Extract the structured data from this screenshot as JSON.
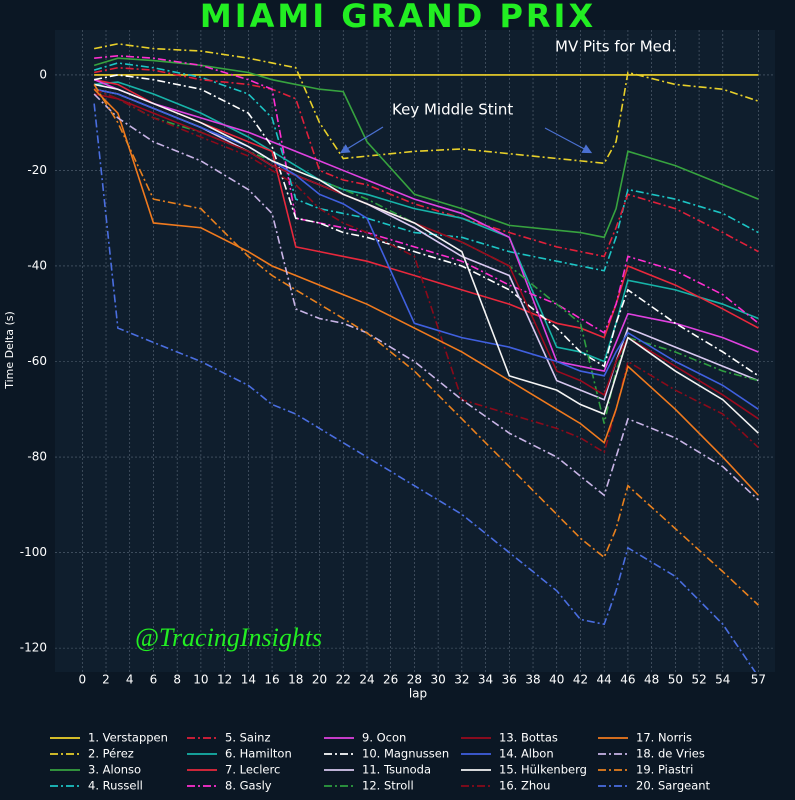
{
  "chart_data": {
    "type": "line",
    "title": "MIAMI GRAND PRIX",
    "xlabel": "lap",
    "ylabel": "Time Delta (s)",
    "annotations": [
      "MV Pits for Med.",
      "Key Middle Stint"
    ],
    "watermark": "@TracingInsights",
    "grid": true,
    "legend": "bottom",
    "xlim": [
      -2.3,
      58.4
    ],
    "ylim": [
      -125,
      9.4
    ],
    "xticks": [
      0,
      2,
      4,
      6,
      8,
      10,
      12,
      14,
      16,
      18,
      20,
      22,
      24,
      26,
      28,
      30,
      32,
      34,
      36,
      38,
      40,
      42,
      44,
      46,
      48,
      50,
      52,
      54,
      57
    ],
    "yticks": [
      0,
      -20,
      -40,
      -60,
      -80,
      -100,
      -120
    ],
    "x": [
      1,
      3,
      6,
      10,
      14,
      16,
      18,
      20,
      22,
      24,
      28,
      32,
      36,
      40,
      42,
      44,
      45,
      46,
      50,
      54,
      57
    ],
    "series": [
      {
        "name": "1. Verstappen",
        "color": "#f2d42a",
        "style": "solid",
        "values": [
          0,
          0,
          0,
          0,
          0,
          0,
          0,
          0,
          0,
          0,
          0,
          0,
          0,
          0,
          0,
          0,
          0,
          0,
          0,
          0,
          0
        ]
      },
      {
        "name": "2. Pérez",
        "color": "#e8d02a",
        "style": "dashdot",
        "values": [
          5.5,
          6.5,
          5.5,
          5,
          3.5,
          2.5,
          1.5,
          -10,
          -17.5,
          -17,
          -16,
          -15.5,
          -16.5,
          -17.5,
          -18,
          -18.5,
          -14,
          0.5,
          -2,
          -3,
          -5.5
        ]
      },
      {
        "name": "3. Alonso",
        "color": "#37a33f",
        "style": "solid",
        "values": [
          2,
          3.5,
          3,
          2,
          0.5,
          -1,
          -2,
          -3,
          -3.5,
          -14,
          -25,
          -28,
          -31.5,
          -32.5,
          -33,
          -34,
          -28,
          -16,
          -19,
          -23,
          -26
        ]
      },
      {
        "name": "4. Russell",
        "color": "#1cc4c4",
        "style": "dashdot",
        "values": [
          1,
          2.5,
          1.5,
          -0.5,
          -4,
          -9,
          -26,
          -28,
          -29,
          -30,
          -33,
          -34,
          -37,
          -39,
          -40,
          -41,
          -34,
          -24,
          -26,
          -29,
          -33
        ]
      },
      {
        "name": "5. Sainz",
        "color": "#e0203a",
        "style": "dashdot",
        "values": [
          0.5,
          1.5,
          1,
          -1,
          -2,
          -3,
          -5,
          -20,
          -22,
          -23,
          -27,
          -30,
          -33,
          -36,
          -37,
          -38,
          -32,
          -25,
          -28,
          -33,
          -37
        ]
      },
      {
        "name": "6. Hamilton",
        "color": "#17b3a8",
        "style": "solid",
        "values": [
          -2,
          -1.5,
          -4,
          -8,
          -13,
          -16,
          -19,
          -22,
          -24,
          -25,
          -28,
          -30,
          -34,
          -57,
          -58,
          -60,
          -52,
          -43,
          -45,
          -48,
          -51
        ]
      },
      {
        "name": "7. Leclerc",
        "color": "#e8283c",
        "style": "solid",
        "values": [
          -1,
          -2,
          -6,
          -10,
          -14,
          -16,
          -36,
          -37,
          -38,
          -39,
          -42,
          -45,
          -48,
          -52,
          -53,
          -55,
          -48,
          -40,
          -44,
          -49,
          -53
        ]
      },
      {
        "name": "8. Gasly",
        "color": "#ff2fd0",
        "style": "dashdot",
        "values": [
          3.5,
          4,
          3.5,
          2,
          -1,
          -3,
          -30,
          -31,
          -32,
          -33,
          -36,
          -39,
          -44,
          -48,
          -51,
          -54,
          -48,
          -38,
          -41,
          -46,
          -52
        ]
      },
      {
        "name": "9. Ocon",
        "color": "#e042e0",
        "style": "solid",
        "values": [
          -1,
          -3,
          -6,
          -9,
          -12,
          -14,
          -16,
          -18,
          -20,
          -22,
          -26,
          -29,
          -34,
          -60,
          -61,
          -62,
          -56,
          -50,
          -52,
          -55,
          -58
        ]
      },
      {
        "name": "10. Magnussen",
        "color": "#ffffff",
        "style": "dashdot",
        "values": [
          -1,
          0,
          -1,
          -3,
          -8,
          -15,
          -30,
          -31,
          -33,
          -34,
          -37,
          -40,
          -45,
          -53,
          -58,
          -61,
          -52,
          -45,
          -52,
          -58,
          -63
        ]
      },
      {
        "name": "11. Tsunoda",
        "color": "#d8c8f0",
        "style": "solid",
        "values": [
          -3,
          -4,
          -7,
          -11,
          -16,
          -19,
          -21,
          -23,
          -25,
          -27,
          -32,
          -38,
          -42,
          -64,
          -66,
          -68,
          -60,
          -53,
          -57,
          -61,
          -64
        ]
      },
      {
        "name": "12. Stroll",
        "color": "#2e9e40",
        "style": "dashdot",
        "values": [
          -3,
          -5,
          -9,
          -12,
          -16,
          -18,
          -20,
          -22,
          -24,
          -26,
          -31,
          -35,
          -40,
          -48,
          -52,
          -73,
          -62,
          -55,
          -58,
          -62,
          -64
        ]
      },
      {
        "name": "13. Bottas",
        "color": "#9b0a1e",
        "style": "solid",
        "values": [
          -4,
          -5,
          -8,
          -12,
          -16,
          -19,
          -21,
          -23,
          -25,
          -27,
          -31,
          -35,
          -40,
          -62,
          -64,
          -67,
          -60,
          -55,
          -61,
          -67,
          -72
        ]
      },
      {
        "name": "14. Albon",
        "color": "#4060e0",
        "style": "solid",
        "values": [
          -3,
          -4,
          -7,
          -11,
          -15,
          -18,
          -21,
          -25,
          -27,
          -30,
          -52,
          -55,
          -57,
          -60,
          -62,
          -63,
          -58,
          -54,
          -60,
          -65,
          -70
        ]
      },
      {
        "name": "15. Hülkenberg",
        "color": "#f4f4f4",
        "style": "solid",
        "values": [
          -2,
          -3,
          -6,
          -10,
          -15,
          -18,
          -20,
          -22,
          -25,
          -27,
          -31,
          -37,
          -63,
          -66,
          -69,
          -71,
          -63,
          -55,
          -62,
          -68,
          -75
        ]
      },
      {
        "name": "16. Zhou",
        "color": "#8b0a1a",
        "style": "dashdot",
        "values": [
          -3,
          -5,
          -9,
          -13,
          -17,
          -20,
          -23,
          -28,
          -31,
          -33,
          -38,
          -68,
          -71,
          -74,
          -76,
          -79,
          -70,
          -60,
          -66,
          -71,
          -78
        ]
      },
      {
        "name": "17. Norris",
        "color": "#f07a1e",
        "style": "solid",
        "values": [
          -3,
          -8,
          -31,
          -32,
          -37,
          -40,
          -42,
          -44,
          -46,
          -48,
          -53,
          -58,
          -64,
          -70,
          -73,
          -77,
          -70,
          -61,
          -70,
          -80,
          -88
        ]
      },
      {
        "name": "18. de Vries",
        "color": "#c8b4e6",
        "style": "dashdot",
        "values": [
          -4,
          -9,
          -14,
          -18,
          -24,
          -29,
          -49,
          -51,
          -52,
          -54,
          -60,
          -68,
          -75,
          -80,
          -84,
          -88,
          -80,
          -72,
          -76,
          -82,
          -89
        ]
      },
      {
        "name": "19. Piastri",
        "color": "#e8801e",
        "style": "dashdot",
        "values": [
          -2,
          -10,
          -26,
          -28,
          -38,
          -42,
          -45,
          -48,
          -51,
          -54,
          -62,
          -72,
          -82,
          -92,
          -97,
          -101,
          -95,
          -86,
          -95,
          -104,
          -111
        ]
      },
      {
        "name": "20. Sargeant",
        "color": "#4a6ee0",
        "style": "dashdot",
        "values": [
          -6,
          -53,
          -56,
          -60,
          -65,
          -69,
          -71,
          -74,
          -77,
          -80,
          -86,
          -92,
          -100,
          -108,
          -114,
          -115,
          -108,
          -99,
          -105,
          -115,
          -126
        ]
      }
    ]
  }
}
